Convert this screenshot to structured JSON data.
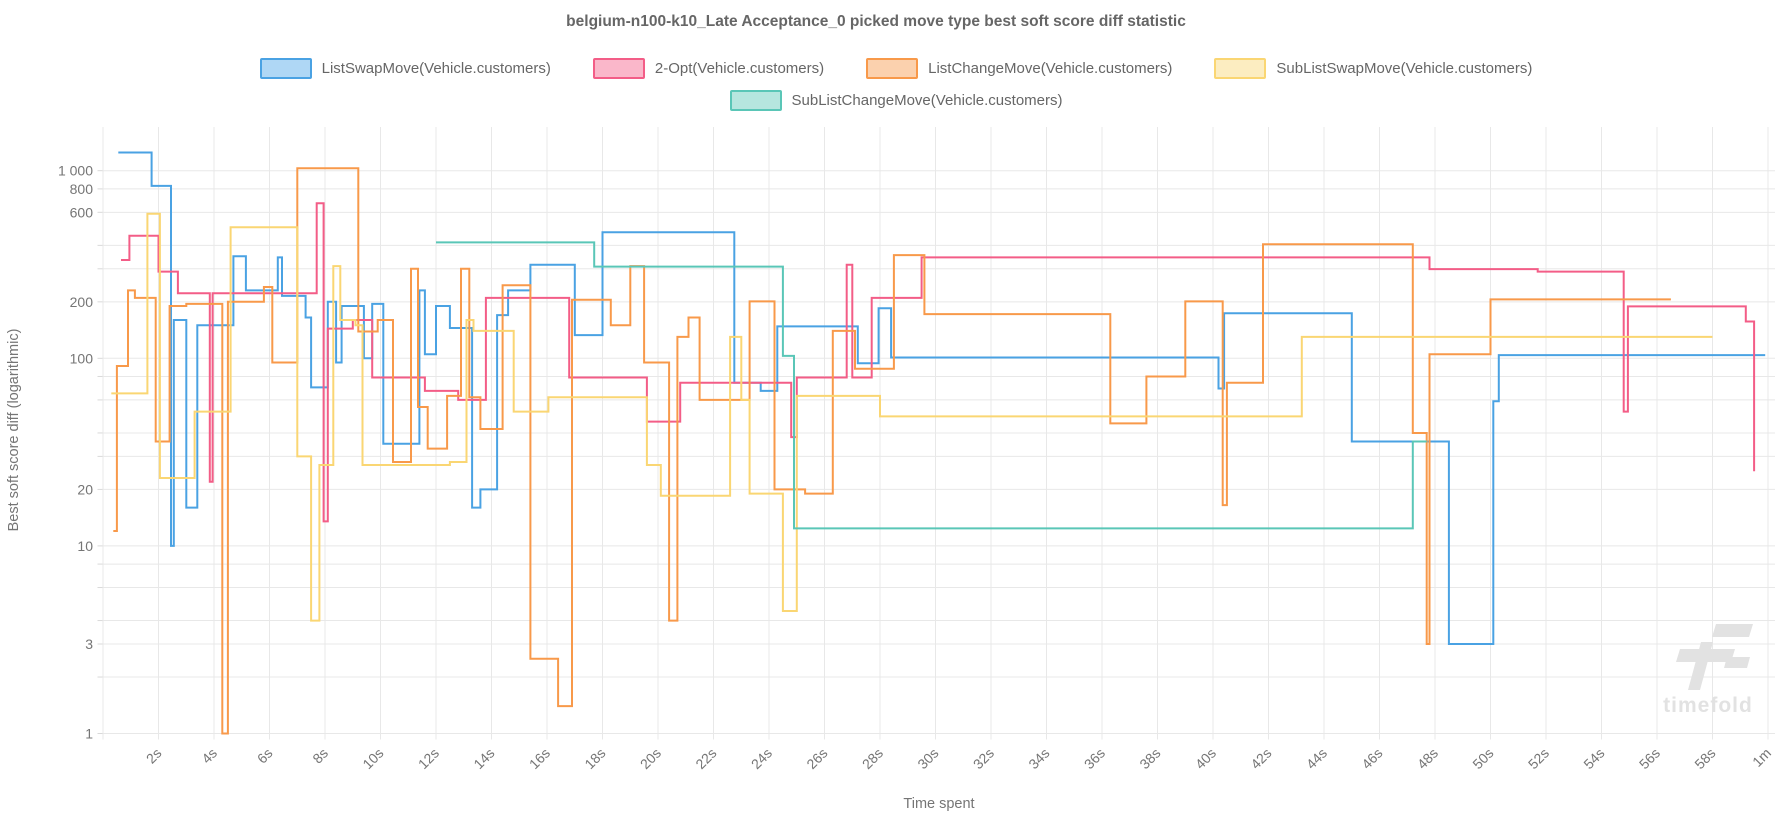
{
  "title": "belgium-n100-k10_Late Acceptance_0 picked move type best soft score diff statistic",
  "watermark": {
    "text": "timefold",
    "color": "#e2e2e2"
  },
  "chart_data": {
    "type": "line",
    "stepped": true,
    "title": "belgium-n100-k10_Late Acceptance_0 picked move type best soft score diff statistic",
    "xlabel": "Time spent",
    "ylabel": "Best soft score diff (logarithmic)",
    "x_unit": "seconds",
    "x_range": [
      0,
      60
    ],
    "y_scale": "log",
    "y_range": [
      1,
      1700
    ],
    "grid": true,
    "legend_position": "top",
    "x_ticks": [
      {
        "t": 2,
        "label": "2s"
      },
      {
        "t": 4,
        "label": "4s"
      },
      {
        "t": 6,
        "label": "6s"
      },
      {
        "t": 8,
        "label": "8s"
      },
      {
        "t": 10,
        "label": "10s"
      },
      {
        "t": 12,
        "label": "12s"
      },
      {
        "t": 14,
        "label": "14s"
      },
      {
        "t": 16,
        "label": "16s"
      },
      {
        "t": 18,
        "label": "18s"
      },
      {
        "t": 20,
        "label": "20s"
      },
      {
        "t": 22,
        "label": "22s"
      },
      {
        "t": 24,
        "label": "24s"
      },
      {
        "t": 26,
        "label": "26s"
      },
      {
        "t": 28,
        "label": "28s"
      },
      {
        "t": 30,
        "label": "30s"
      },
      {
        "t": 32,
        "label": "32s"
      },
      {
        "t": 34,
        "label": "34s"
      },
      {
        "t": 36,
        "label": "36s"
      },
      {
        "t": 38,
        "label": "38s"
      },
      {
        "t": 40,
        "label": "40s"
      },
      {
        "t": 42,
        "label": "42s"
      },
      {
        "t": 44,
        "label": "44s"
      },
      {
        "t": 46,
        "label": "46s"
      },
      {
        "t": 48,
        "label": "48s"
      },
      {
        "t": 50,
        "label": "50s"
      },
      {
        "t": 52,
        "label": "52s"
      },
      {
        "t": 54,
        "label": "54s"
      },
      {
        "t": 56,
        "label": "56s"
      },
      {
        "t": 58,
        "label": "58s"
      },
      {
        "t": 60,
        "label": "1m"
      }
    ],
    "y_ticks_labeled": [
      {
        "v": 1000,
        "label": "1 000"
      },
      {
        "v": 800,
        "label": "800"
      },
      {
        "v": 600,
        "label": "600"
      },
      {
        "v": 200,
        "label": "200"
      },
      {
        "v": 100,
        "label": "100"
      },
      {
        "v": 20,
        "label": "20"
      },
      {
        "v": 10,
        "label": "10"
      },
      {
        "v": 3,
        "label": "3"
      },
      {
        "v": 1,
        "label": "1"
      }
    ],
    "y_grid_unlabeled": [
      400,
      300,
      80,
      60,
      40,
      30,
      8,
      6,
      4,
      2
    ],
    "legend_rows": [
      [
        0,
        1,
        2,
        3
      ],
      [
        4
      ]
    ],
    "series": [
      {
        "name": "ListSwapMove(Vehicle.customers)",
        "color": "#4AA2E3",
        "fill": "#AFD7F5",
        "points": [
          [
            0.55,
            1250
          ],
          [
            1.75,
            830
          ],
          [
            2.45,
            10
          ],
          [
            2.55,
            160
          ],
          [
            3.0,
            16
          ],
          [
            3.4,
            150
          ],
          [
            4.7,
            350
          ],
          [
            5.15,
            230
          ],
          [
            6.3,
            345
          ],
          [
            6.45,
            215
          ],
          [
            7.3,
            165
          ],
          [
            7.5,
            70
          ],
          [
            8.1,
            200
          ],
          [
            8.4,
            95
          ],
          [
            8.6,
            190
          ],
          [
            9.4,
            100
          ],
          [
            9.7,
            195
          ],
          [
            10.1,
            35
          ],
          [
            11.4,
            230
          ],
          [
            11.6,
            105
          ],
          [
            12.0,
            190
          ],
          [
            12.5,
            145
          ],
          [
            13.3,
            16
          ],
          [
            13.6,
            20
          ],
          [
            14.2,
            170
          ],
          [
            14.6,
            230
          ],
          [
            15.4,
            315
          ],
          [
            17.0,
            133
          ],
          [
            18.0,
            470
          ],
          [
            22.75,
            74
          ],
          [
            23.7,
            67
          ],
          [
            24.3,
            148
          ],
          [
            27.2,
            94
          ],
          [
            27.95,
            185
          ],
          [
            28.4,
            101
          ],
          [
            40.2,
            69
          ],
          [
            40.4,
            174
          ],
          [
            45.0,
            36
          ],
          [
            48.5,
            3
          ],
          [
            50.1,
            59
          ],
          [
            50.3,
            104
          ],
          [
            59.9,
            104
          ]
        ]
      },
      {
        "name": "2-Opt(Vehicle.customers)",
        "color": "#F35D87",
        "fill": "#FAB7CA",
        "points": [
          [
            0.65,
            334
          ],
          [
            0.95,
            450
          ],
          [
            2.0,
            290
          ],
          [
            2.7,
            222
          ],
          [
            3.85,
            22
          ],
          [
            3.95,
            222
          ],
          [
            7.7,
            670
          ],
          [
            7.95,
            13.5
          ],
          [
            8.1,
            144
          ],
          [
            9.0,
            160
          ],
          [
            9.7,
            79
          ],
          [
            11.6,
            67
          ],
          [
            12.8,
            60
          ],
          [
            13.8,
            210
          ],
          [
            16.8,
            79
          ],
          [
            19.6,
            46
          ],
          [
            20.8,
            74
          ],
          [
            24.8,
            38
          ],
          [
            25.0,
            79
          ],
          [
            26.8,
            315
          ],
          [
            27.0,
            79
          ],
          [
            27.7,
            210
          ],
          [
            29.5,
            345
          ],
          [
            47.8,
            299
          ],
          [
            51.7,
            290
          ],
          [
            54.8,
            52
          ],
          [
            54.95,
            189
          ],
          [
            59.2,
            157
          ],
          [
            59.5,
            25
          ]
        ]
      },
      {
        "name": "ListChangeMove(Vehicle.customers)",
        "color": "#F8994A",
        "fill": "#FBD1AE",
        "points": [
          [
            0.37,
            12
          ],
          [
            0.5,
            91
          ],
          [
            0.9,
            230
          ],
          [
            1.15,
            210
          ],
          [
            1.9,
            36
          ],
          [
            2.4,
            190
          ],
          [
            3.0,
            195
          ],
          [
            4.3,
            1
          ],
          [
            4.5,
            200
          ],
          [
            5.8,
            240
          ],
          [
            6.1,
            95
          ],
          [
            7.0,
            1030
          ],
          [
            9.2,
            139
          ],
          [
            9.9,
            160
          ],
          [
            10.45,
            28
          ],
          [
            11.1,
            300
          ],
          [
            11.35,
            55
          ],
          [
            11.7,
            33
          ],
          [
            12.4,
            63
          ],
          [
            12.9,
            300
          ],
          [
            13.2,
            62
          ],
          [
            13.6,
            42
          ],
          [
            14.4,
            245
          ],
          [
            15.4,
            2.5
          ],
          [
            16.4,
            1.4
          ],
          [
            16.9,
            205
          ],
          [
            18.3,
            150
          ],
          [
            19.0,
            310
          ],
          [
            19.5,
            95
          ],
          [
            20.4,
            4
          ],
          [
            20.7,
            130
          ],
          [
            21.1,
            165
          ],
          [
            21.5,
            60
          ],
          [
            23.3,
            201
          ],
          [
            24.2,
            20
          ],
          [
            25.3,
            19
          ],
          [
            26.3,
            140
          ],
          [
            27.1,
            88
          ],
          [
            28.5,
            355
          ],
          [
            29.6,
            172
          ],
          [
            36.3,
            45
          ],
          [
            37.6,
            80
          ],
          [
            39.0,
            201
          ],
          [
            40.35,
            16.5
          ],
          [
            40.5,
            74
          ],
          [
            41.8,
            405
          ],
          [
            47.2,
            40
          ],
          [
            47.7,
            3
          ],
          [
            47.8,
            105
          ],
          [
            50.0,
            206
          ],
          [
            56.5,
            206
          ]
        ]
      },
      {
        "name": "SubListSwapMove(Vehicle.customers)",
        "color": "#FAD673",
        "fill": "#FCEDC1",
        "points": [
          [
            0.3,
            65
          ],
          [
            1.6,
            590
          ],
          [
            2.05,
            23
          ],
          [
            3.3,
            52
          ],
          [
            4.6,
            500
          ],
          [
            7.0,
            30
          ],
          [
            7.5,
            4
          ],
          [
            7.8,
            27
          ],
          [
            8.3,
            310
          ],
          [
            8.55,
            160
          ],
          [
            9.1,
            150
          ],
          [
            9.35,
            27
          ],
          [
            12.5,
            28
          ],
          [
            13.1,
            160
          ],
          [
            13.35,
            140
          ],
          [
            14.8,
            52
          ],
          [
            16.05,
            62
          ],
          [
            19.6,
            27
          ],
          [
            20.1,
            18.5
          ],
          [
            22.6,
            130
          ],
          [
            23.0,
            60
          ],
          [
            23.3,
            19
          ],
          [
            24.5,
            4.5
          ],
          [
            25.0,
            63
          ],
          [
            28.0,
            49
          ],
          [
            43.2,
            130
          ],
          [
            58.0,
            130
          ]
        ]
      },
      {
        "name": "SubListChangeMove(Vehicle.customers)",
        "color": "#5AC6B7",
        "fill": "#B6E6DF",
        "points": [
          [
            12.0,
            415
          ],
          [
            17.7,
            308
          ],
          [
            24.5,
            103
          ],
          [
            24.9,
            12.4
          ],
          [
            47.2,
            36
          ],
          [
            47.7,
            36
          ]
        ]
      }
    ]
  }
}
